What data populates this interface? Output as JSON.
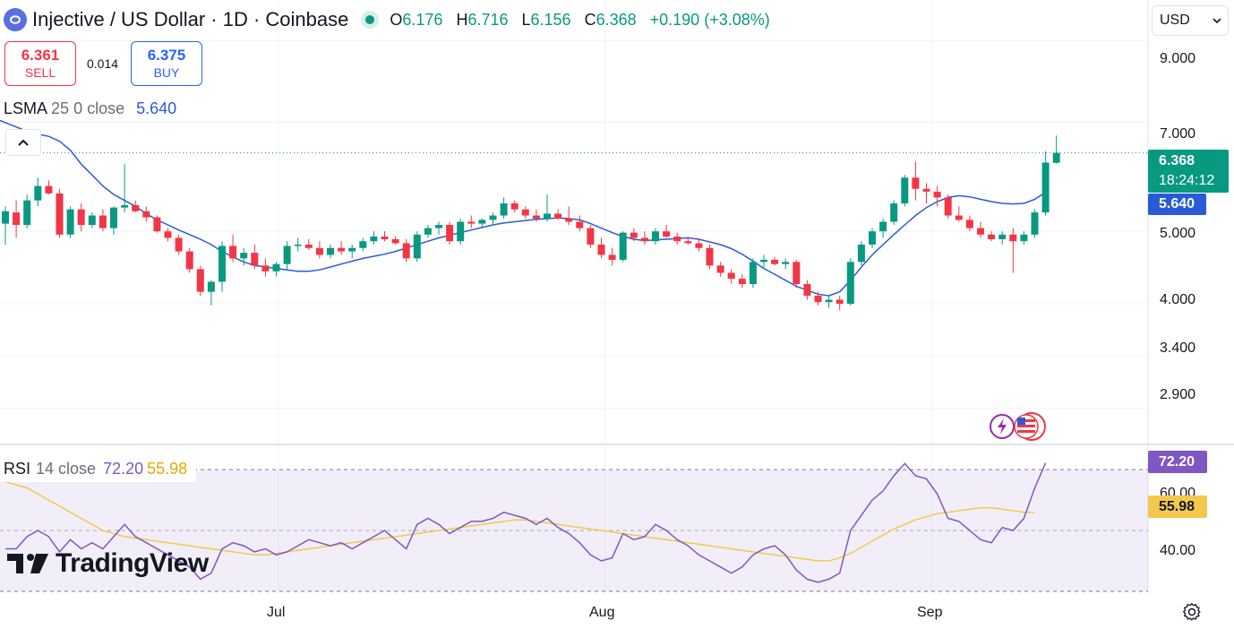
{
  "header": {
    "title": "Injective / US Dollar · 1D · Coinbase",
    "ohlc": {
      "o_label": "O",
      "o_value": "6.176",
      "h_label": "H",
      "h_value": "6.716",
      "l_label": "L",
      "l_value": "6.156",
      "c_label": "C",
      "c_value": "6.368",
      "change": "+0.190 (+3.08%)"
    }
  },
  "trade": {
    "sell_price": "6.361",
    "sell_label": "SELL",
    "spread": "0.014",
    "buy_price": "6.375",
    "buy_label": "BUY"
  },
  "lsma_legend": {
    "name": "LSMA",
    "params": "25 0 close",
    "value": "5.640"
  },
  "rsi_legend": {
    "name": "RSI",
    "params": "14 close",
    "value_rsi": "72.20",
    "value_ma": "55.98"
  },
  "currency": {
    "selected": "USD"
  },
  "price_axis": {
    "ticks": [
      "9.000",
      "7.000",
      "5.000",
      "4.000",
      "3.400",
      "2.900"
    ],
    "last_price": "6.368",
    "countdown": "18:24:12",
    "lsma_value": "5.640"
  },
  "rsi_axis": {
    "ticks": [
      "60.00",
      "40.00"
    ],
    "rsi_value": "72.20",
    "ma_value": "55.98"
  },
  "time_axis": {
    "labels": [
      "Jul",
      "Aug",
      "Sep"
    ]
  },
  "watermark": {
    "brand": "TradingView"
  },
  "icons": {
    "settings": "gear-icon",
    "collapse": "chevron-up-icon",
    "dropdown": "chevron-down-icon",
    "events": "us-flag-icon",
    "flash": "lightning-icon"
  },
  "colors": {
    "up": "#089981",
    "down": "#f23645",
    "lsma": "#2a5bd7",
    "rsi": "#7e57c2",
    "rsi_ma": "#f2c94c"
  },
  "chart_data": [
    {
      "type": "candlestick",
      "title": "Injective / US Dollar · 1D · Coinbase",
      "y_scale": "log",
      "ylim": [
        2.6,
        10.2
      ],
      "x_labels": [
        "Jul",
        "Aug",
        "Sep"
      ],
      "ohlc": [
        [
          5.12,
          5.4,
          4.8,
          5.32
        ],
        [
          5.3,
          5.5,
          4.9,
          5.1
        ],
        [
          5.1,
          5.6,
          5.05,
          5.5
        ],
        [
          5.5,
          5.9,
          5.4,
          5.75
        ],
        [
          5.75,
          5.85,
          5.6,
          5.62
        ],
        [
          5.62,
          5.7,
          4.9,
          4.95
        ],
        [
          4.95,
          5.4,
          4.9,
          5.35
        ],
        [
          5.35,
          5.45,
          5.0,
          5.1
        ],
        [
          5.1,
          5.3,
          5.05,
          5.25
        ],
        [
          5.25,
          5.35,
          5.0,
          5.05
        ],
        [
          5.05,
          5.4,
          4.95,
          5.38
        ],
        [
          5.38,
          6.15,
          5.3,
          5.42
        ],
        [
          5.42,
          5.5,
          5.3,
          5.32
        ],
        [
          5.32,
          5.4,
          5.15,
          5.22
        ],
        [
          5.22,
          5.25,
          4.98,
          5.0
        ],
        [
          5.0,
          5.05,
          4.85,
          4.9
        ],
        [
          4.9,
          4.95,
          4.65,
          4.7
        ],
        [
          4.7,
          4.75,
          4.4,
          4.45
        ],
        [
          4.45,
          4.5,
          4.1,
          4.15
        ],
        [
          4.15,
          4.3,
          3.98,
          4.28
        ],
        [
          4.28,
          4.85,
          4.15,
          4.78
        ],
        [
          4.78,
          4.95,
          4.55,
          4.6
        ],
        [
          4.6,
          4.75,
          4.5,
          4.68
        ],
        [
          4.68,
          4.8,
          4.45,
          4.5
        ],
        [
          4.5,
          4.6,
          4.35,
          4.42
        ],
        [
          4.42,
          4.55,
          4.35,
          4.52
        ],
        [
          4.52,
          4.85,
          4.45,
          4.78
        ],
        [
          4.78,
          4.9,
          4.7,
          4.8
        ],
        [
          4.8,
          4.88,
          4.72,
          4.75
        ],
        [
          4.75,
          4.85,
          4.6,
          4.65
        ],
        [
          4.65,
          4.8,
          4.6,
          4.75
        ],
        [
          4.75,
          4.85,
          4.65,
          4.7
        ],
        [
          4.7,
          4.8,
          4.6,
          4.75
        ],
        [
          4.75,
          4.9,
          4.7,
          4.85
        ],
        [
          4.85,
          5.0,
          4.8,
          4.92
        ],
        [
          4.92,
          5.0,
          4.85,
          4.88
        ],
        [
          4.88,
          4.92,
          4.8,
          4.82
        ],
        [
          4.82,
          4.88,
          4.55,
          4.6
        ],
        [
          4.6,
          5.0,
          4.55,
          4.95
        ],
        [
          4.95,
          5.1,
          4.9,
          5.05
        ],
        [
          5.05,
          5.15,
          4.95,
          5.1
        ],
        [
          5.1,
          5.15,
          4.8,
          4.85
        ],
        [
          4.85,
          5.2,
          4.8,
          5.15
        ],
        [
          5.15,
          5.25,
          5.05,
          5.12
        ],
        [
          5.12,
          5.2,
          5.05,
          5.18
        ],
        [
          5.18,
          5.3,
          5.1,
          5.25
        ],
        [
          5.25,
          5.55,
          5.2,
          5.45
        ],
        [
          5.45,
          5.5,
          5.3,
          5.35
        ],
        [
          5.35,
          5.4,
          5.2,
          5.25
        ],
        [
          5.25,
          5.35,
          5.15,
          5.2
        ],
        [
          5.2,
          5.6,
          5.15,
          5.28
        ],
        [
          5.28,
          5.35,
          5.18,
          5.2
        ],
        [
          5.2,
          5.4,
          5.1,
          5.15
        ],
        [
          5.15,
          5.25,
          5.0,
          5.05
        ],
        [
          5.05,
          5.1,
          4.75,
          4.8
        ],
        [
          4.8,
          4.9,
          4.6,
          4.65
        ],
        [
          4.65,
          4.75,
          4.5,
          4.58
        ],
        [
          4.58,
          5.0,
          4.55,
          4.98
        ],
        [
          4.98,
          5.05,
          4.85,
          4.9
        ],
        [
          4.9,
          5.0,
          4.8,
          4.85
        ],
        [
          4.85,
          5.05,
          4.8,
          5.0
        ],
        [
          5.0,
          5.1,
          4.9,
          4.92
        ],
        [
          4.92,
          4.98,
          4.8,
          4.85
        ],
        [
          4.85,
          4.92,
          4.8,
          4.82
        ],
        [
          4.82,
          4.88,
          4.7,
          4.75
        ],
        [
          4.75,
          4.8,
          4.45,
          4.5
        ],
        [
          4.5,
          4.55,
          4.35,
          4.4
        ],
        [
          4.4,
          4.45,
          4.25,
          4.32
        ],
        [
          4.32,
          4.38,
          4.2,
          4.25
        ],
        [
          4.25,
          4.6,
          4.2,
          4.55
        ],
        [
          4.55,
          4.65,
          4.45,
          4.58
        ],
        [
          4.58,
          4.62,
          4.5,
          4.52
        ],
        [
          4.52,
          4.6,
          4.45,
          4.55
        ],
        [
          4.55,
          4.58,
          4.2,
          4.25
        ],
        [
          4.25,
          4.3,
          4.05,
          4.1
        ],
        [
          4.1,
          4.15,
          3.98,
          4.02
        ],
        [
          4.02,
          4.1,
          3.95,
          4.05
        ],
        [
          4.05,
          4.1,
          3.92,
          4.0
        ],
        [
          4.0,
          4.6,
          3.98,
          4.55
        ],
        [
          4.55,
          4.85,
          4.5,
          4.8
        ],
        [
          4.8,
          5.05,
          4.75,
          5.0
        ],
        [
          5.0,
          5.2,
          4.9,
          5.15
        ],
        [
          5.15,
          5.5,
          5.1,
          5.45
        ],
        [
          5.45,
          5.95,
          5.4,
          5.9
        ],
        [
          5.9,
          6.2,
          5.5,
          5.7
        ],
        [
          5.7,
          5.8,
          5.45,
          5.65
        ],
        [
          5.65,
          5.75,
          5.4,
          5.55
        ],
        [
          5.55,
          5.6,
          5.2,
          5.25
        ],
        [
          5.25,
          5.4,
          5.15,
          5.18
        ],
        [
          5.18,
          5.25,
          5.0,
          5.05
        ],
        [
          5.05,
          5.15,
          4.9,
          4.95
        ],
        [
          4.95,
          5.0,
          4.85,
          4.88
        ],
        [
          4.88,
          5.0,
          4.8,
          4.95
        ],
        [
          4.95,
          5.05,
          4.4,
          4.85
        ],
        [
          4.85,
          5.0,
          4.8,
          4.95
        ],
        [
          4.95,
          5.35,
          4.9,
          5.3
        ],
        [
          5.3,
          6.4,
          5.25,
          6.18
        ],
        [
          6.176,
          6.716,
          6.156,
          6.368
        ]
      ],
      "lsma": [
        6.7,
        6.6,
        6.42,
        6.15,
        5.95,
        5.75,
        5.6,
        5.5,
        5.4,
        5.28,
        5.18,
        5.1,
        5.02,
        4.95,
        4.88,
        4.8,
        4.7,
        4.62,
        4.55,
        4.5,
        4.48,
        4.46,
        4.44,
        4.42,
        4.42,
        4.44,
        4.48,
        4.52,
        4.56,
        4.6,
        4.63,
        4.66,
        4.7,
        4.75,
        4.8,
        4.85,
        4.9,
        4.94,
        4.98,
        5.02,
        5.06,
        5.1,
        5.13,
        5.15,
        5.17,
        5.19,
        5.2,
        5.21,
        5.2,
        5.18,
        5.12,
        5.05,
        4.98,
        4.92,
        4.88,
        4.86,
        4.87,
        4.88,
        4.89,
        4.9,
        4.88,
        4.84,
        4.8,
        4.74,
        4.66,
        4.56,
        4.46,
        4.38,
        4.3,
        4.22,
        4.17,
        4.12,
        4.1,
        4.15,
        4.3,
        4.48,
        4.65,
        4.8,
        4.95,
        5.1,
        5.25,
        5.38,
        5.48,
        5.55,
        5.58,
        5.56,
        5.52,
        5.48,
        5.45,
        5.44,
        5.45,
        5.52,
        5.64
      ],
      "lsma_start_index": 4
    },
    {
      "type": "line",
      "title": "RSI 14 close",
      "ylim": [
        30,
        78
      ],
      "y_ticks": [
        60,
        40
      ],
      "bands": [
        70,
        30
      ],
      "series": [
        {
          "name": "RSI",
          "values": [
            44,
            44,
            48,
            50,
            48,
            43,
            47,
            44,
            46,
            44,
            48,
            52,
            48,
            46,
            44,
            42,
            40,
            38,
            34,
            36,
            44,
            46,
            45,
            43,
            44,
            42,
            43,
            45,
            47,
            46,
            45,
            46,
            44,
            46,
            48,
            50,
            47,
            44,
            52,
            54,
            52,
            49,
            51,
            53,
            53,
            54,
            56,
            55,
            54,
            52,
            54,
            51,
            49,
            46,
            42,
            40,
            41,
            49,
            47,
            48,
            52,
            50,
            47,
            45,
            42,
            40,
            38,
            36,
            38,
            42,
            44,
            45,
            42,
            37,
            34,
            33,
            34,
            36,
            50,
            55,
            60,
            63,
            68,
            72,
            68,
            67,
            62,
            54,
            53,
            50,
            47,
            46,
            51,
            50,
            54,
            64,
            72.2
          ]
        },
        {
          "name": "MA",
          "values": [
            66,
            65,
            64,
            62,
            60,
            58,
            56,
            54,
            52,
            50,
            49,
            48,
            47.5,
            47,
            46.5,
            46,
            45.5,
            45,
            44.5,
            44,
            43.5,
            43,
            42.5,
            42,
            42,
            42.5,
            43,
            43.5,
            44,
            44.5,
            45,
            45.5,
            46,
            46.5,
            47,
            47.5,
            48,
            48.5,
            49,
            49.5,
            50,
            50.5,
            51,
            51.5,
            52,
            52.5,
            53,
            53.5,
            53.5,
            53,
            52.5,
            52,
            51.5,
            51,
            50.5,
            50,
            49.5,
            49,
            48.5,
            48,
            47.5,
            47,
            46.5,
            46,
            45.5,
            45,
            44.5,
            44,
            43.5,
            43,
            42.5,
            42,
            41.5,
            41,
            40.5,
            40,
            40,
            41,
            42.5,
            44.5,
            46.5,
            48.5,
            50.5,
            52,
            53.5,
            54.5,
            55.5,
            56,
            56.5,
            57,
            57.5,
            57.5,
            57,
            56.5,
            56,
            55.98
          ]
        }
      ]
    }
  ]
}
